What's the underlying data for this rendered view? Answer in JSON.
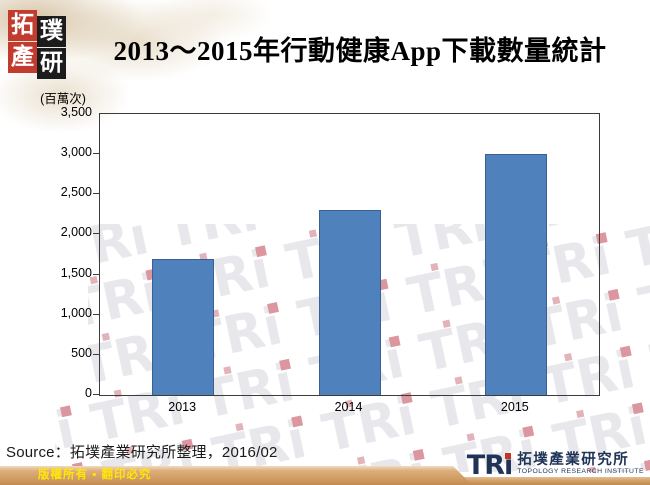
{
  "title": "2013～2015年行動健康App下載數量統計",
  "logo_topleft": {
    "blocks": [
      {
        "char": "拓"
      },
      {
        "char": "璞"
      },
      {
        "char": "產"
      },
      {
        "char": "研"
      }
    ]
  },
  "chart_data": {
    "type": "bar",
    "title": "2013～2015年行動健康App下載數量統計",
    "unit_label": "(百萬次)",
    "categories": [
      "2013",
      "2014",
      "2015"
    ],
    "values": [
      1700,
      2300,
      3000
    ],
    "ylim": [
      0,
      3500
    ],
    "ytick_step": 500,
    "grid": false,
    "legend": "none",
    "bar_color": "#4f81bd",
    "bar_border_color": "#38618f"
  },
  "source_line": "Source：拓墣產業研究所整理，2016/02",
  "footer": {
    "copyright": "版權所有 ▪ 翻印必究",
    "logo": {
      "mark": "TR",
      "mark_i": "ı",
      "cn": "拓墣產業研究所",
      "en": "TOPOLOGY RESEARCH INSTITUTE"
    }
  },
  "colors": {
    "accent_red": "#c13b2f",
    "navy": "#1e3356",
    "footer_tan": "#cf9a60",
    "watermark_gray": "#e8e8ec",
    "watermark_red": "#dc96a0"
  }
}
